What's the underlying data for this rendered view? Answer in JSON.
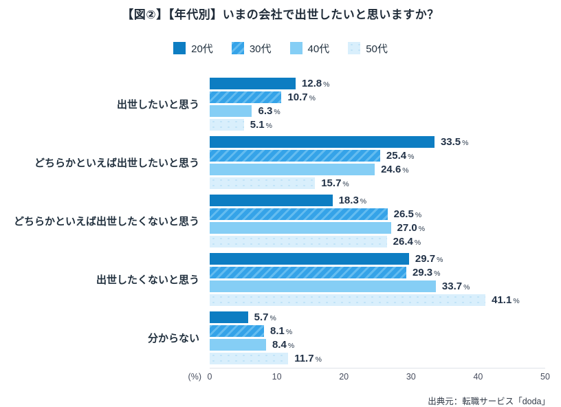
{
  "title": "【図②】【年代別】いまの会社で出世したいと思いますか？",
  "chart_data": {
    "type": "bar",
    "orientation": "horizontal",
    "title": "【図②】【年代別】いまの会社で出世したいと思いますか？",
    "categories": [
      "出世したいと思う",
      "どちらかといえば出世したいと思う",
      "どちらかといえば出世したくないと思う",
      "出世したくないと思う",
      "分からない"
    ],
    "series": [
      {
        "name": "20代",
        "pattern": "solid",
        "color": "#0d7dc2",
        "values": [
          "12.8",
          "33.5",
          "18.3",
          "29.7",
          "5.7"
        ]
      },
      {
        "name": "30代",
        "pattern": "diagonal-stripes",
        "color": "#35a3e8",
        "values": [
          "10.7",
          "25.4",
          "26.5",
          "29.3",
          "8.1"
        ]
      },
      {
        "name": "40代",
        "pattern": "solid",
        "color": "#85cef5",
        "values": [
          "6.3",
          "24.6",
          "27.0",
          "33.7",
          "8.4"
        ]
      },
      {
        "name": "50代",
        "pattern": "dots",
        "color": "#d9effc",
        "values": [
          "5.1",
          "15.7",
          "26.4",
          "41.1",
          "11.7"
        ]
      }
    ],
    "value_suffix": "%",
    "axis_unit": "(%)",
    "x_ticks": [
      0,
      10,
      20,
      30,
      40,
      50
    ],
    "xlim": [
      0,
      50
    ],
    "grid": false,
    "legend_position": "top-center"
  },
  "source": "出典元：転職サービス「doda」"
}
